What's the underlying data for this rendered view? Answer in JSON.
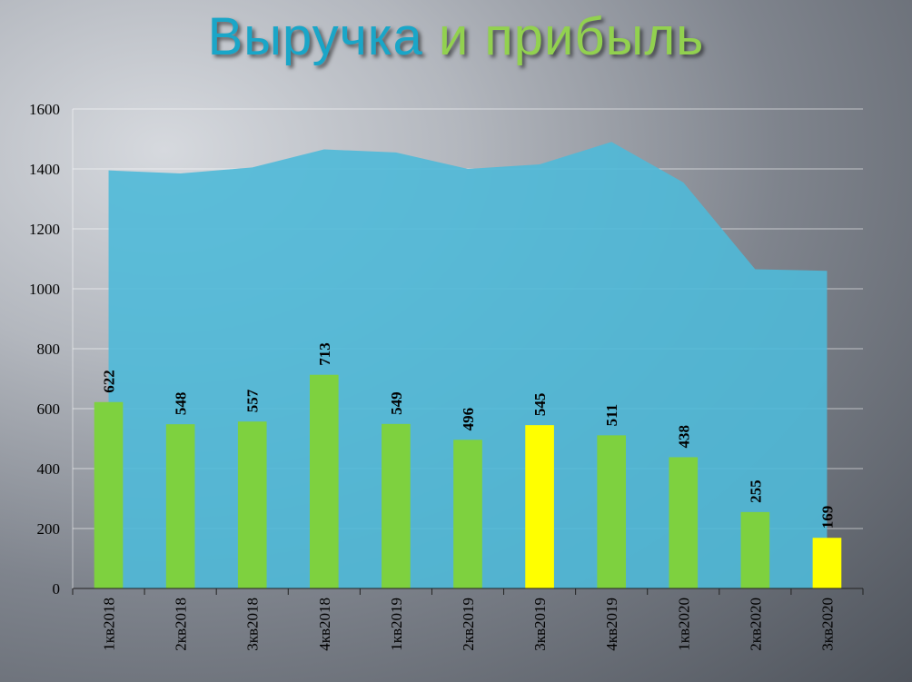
{
  "title": {
    "part1": "Выручка",
    "part2": "и прибыль"
  },
  "colors": {
    "area": "#4fb9d8",
    "bar": "#7ed13f",
    "bar_highlight": "#ffff00",
    "title_part1": "#1aa6c8",
    "title_part2": "#92d14f"
  },
  "chart_data": {
    "type": "bar",
    "categories": [
      "1кв2018",
      "2кв2018",
      "3кв2018",
      "4кв2018",
      "1кв2019",
      "2кв2019",
      "3кв2019",
      "4кв2019",
      "1кв2020",
      "2кв2020",
      "3кв2020"
    ],
    "series": [
      {
        "type": "area",
        "values": [
          1395,
          1385,
          1405,
          1465,
          1455,
          1400,
          1415,
          1490,
          1355,
          1065,
          1060
        ]
      },
      {
        "type": "bar",
        "values": [
          622,
          548,
          557,
          713,
          549,
          496,
          545,
          511,
          438,
          255,
          169
        ],
        "data_labels": [
          "622",
          "548",
          "557",
          "713",
          "549",
          "496",
          "545",
          "511",
          "438",
          "255",
          "169"
        ],
        "highlighted": [
          "3кв2019",
          "3кв2020"
        ]
      }
    ],
    "ylim": [
      0,
      1600
    ],
    "yticks": [
      "0",
      "200",
      "400",
      "600",
      "800",
      "1000",
      "1200",
      "1400",
      "1600"
    ],
    "grid": true,
    "legend": "none"
  }
}
